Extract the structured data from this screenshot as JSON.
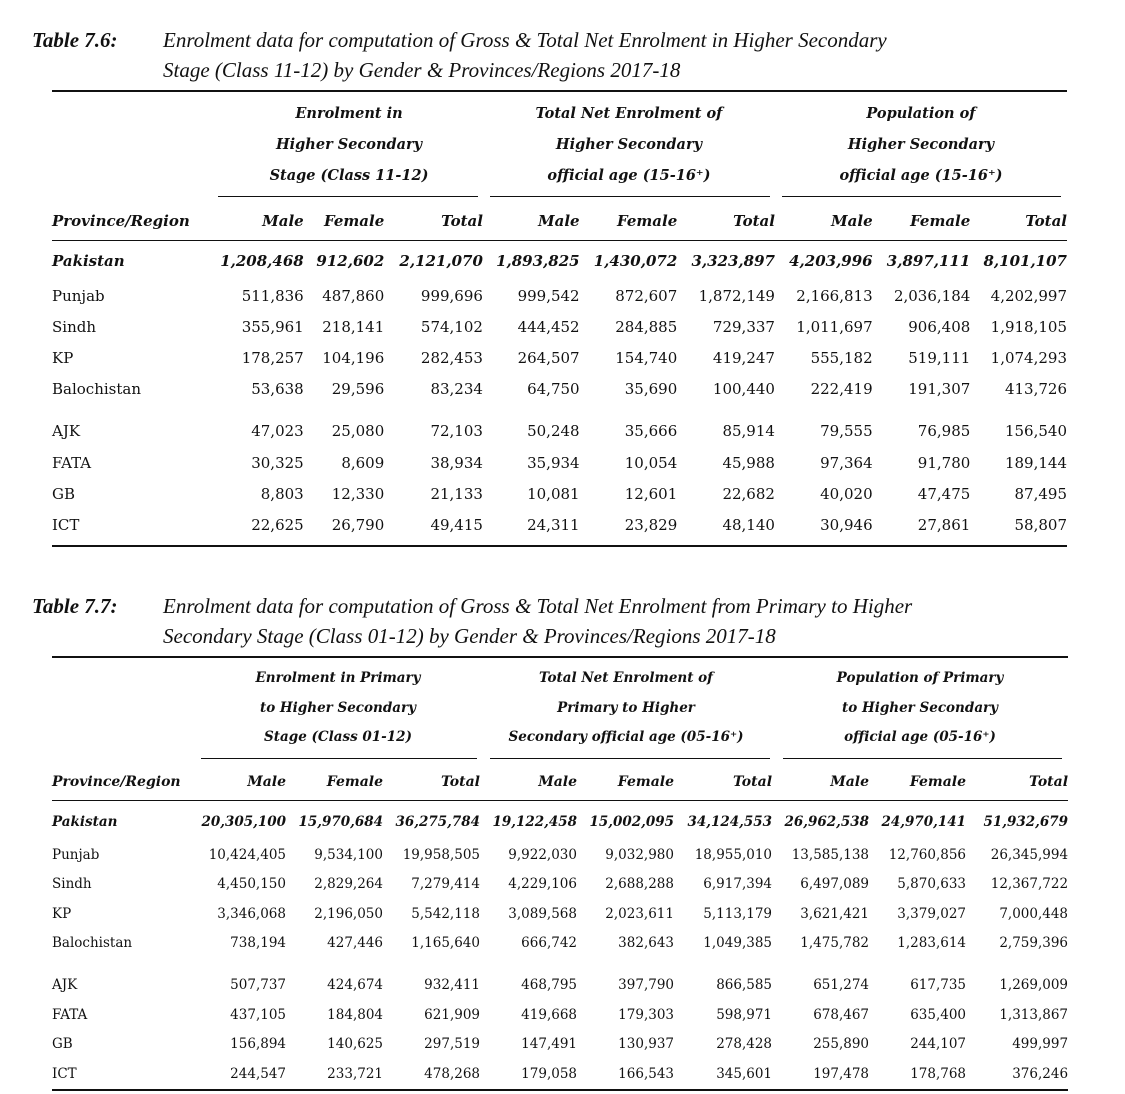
{
  "tables": [
    {
      "label": "Table 7.6:",
      "title_line1": "Enrolment data for computation of Gross & Total Net Enrolment in Higher Secondary",
      "title_line2": "Stage (Class 11-12) by Gender & Provinces/Regions 2017-18",
      "groups": [
        {
          "line1": "Enrolment in",
          "line2": "Higher Secondary",
          "line3": "Stage (Class 11-12)"
        },
        {
          "line1": "Total Net Enrolment of",
          "line2": "Higher Secondary",
          "line3": "official age (15-16⁺)"
        },
        {
          "line1": "Population of",
          "line2": "Higher Secondary",
          "line3": "official age (15-16⁺)"
        }
      ],
      "columns": [
        "Province/Region",
        "Male",
        "Female",
        "Total",
        "Male",
        "Female",
        "Total",
        "Male",
        "Female",
        "Total"
      ],
      "rows": [
        [
          "Pakistan",
          "1,208,468",
          "912,602",
          "2,121,070",
          "1,893,825",
          "1,430,072",
          "3,323,897",
          "4,203,996",
          "3,897,111",
          "8,101,107"
        ],
        [
          "Punjab",
          "511,836",
          "487,860",
          "999,696",
          "999,542",
          "872,607",
          "1,872,149",
          "2,166,813",
          "2,036,184",
          "4,202,997"
        ],
        [
          "Sindh",
          "355,961",
          "218,141",
          "574,102",
          "444,452",
          "284,885",
          "729,337",
          "1,011,697",
          "906,408",
          "1,918,105"
        ],
        [
          "KP",
          "178,257",
          "104,196",
          "282,453",
          "264,507",
          "154,740",
          "419,247",
          "555,182",
          "519,111",
          "1,074,293"
        ],
        [
          "Balochistan",
          "53,638",
          "29,596",
          "83,234",
          "64,750",
          "35,690",
          "100,440",
          "222,419",
          "191,307",
          "413,726"
        ],
        [
          "AJK",
          "47,023",
          "25,080",
          "72,103",
          "50,248",
          "35,666",
          "85,914",
          "79,555",
          "76,985",
          "156,540"
        ],
        [
          "FATA",
          "30,325",
          "8,609",
          "38,934",
          "35,934",
          "10,054",
          "45,988",
          "97,364",
          "91,780",
          "189,144"
        ],
        [
          "GB",
          "8,803",
          "12,330",
          "21,133",
          "10,081",
          "12,601",
          "22,682",
          "40,020",
          "47,475",
          "87,495"
        ],
        [
          "ICT",
          "22,625",
          "26,790",
          "49,415",
          "24,311",
          "23,829",
          "48,140",
          "30,946",
          "27,861",
          "58,807"
        ]
      ]
    },
    {
      "label": "Table 7.7:",
      "title_line1": "Enrolment data for computation of Gross & Total Net Enrolment from Primary to Higher",
      "title_line2": "Secondary Stage (Class 01-12) by Gender & Provinces/Regions 2017-18",
      "groups": [
        {
          "line1": "Enrolment in Primary",
          "line2": "to Higher Secondary",
          "line3": "Stage (Class 01-12)"
        },
        {
          "line1": "Total Net Enrolment of",
          "line2": "Primary to Higher",
          "line3": "Secondary official age (05-16⁺)"
        },
        {
          "line1": "Population of Primary",
          "line2": "to Higher Secondary",
          "line3": "official age (05-16⁺)"
        }
      ],
      "columns": [
        "Province/Region",
        "Male",
        "Female",
        "Total",
        "Male",
        "Female",
        "Total",
        "Male",
        "Female",
        "Total"
      ],
      "rows": [
        [
          "Pakistan",
          "20,305,100",
          "15,970,684",
          "36,275,784",
          "19,122,458",
          "15,002,095",
          "34,124,553",
          "26,962,538",
          "24,970,141",
          "51,932,679"
        ],
        [
          "Punjab",
          "10,424,405",
          "9,534,100",
          "19,958,505",
          "9,922,030",
          "9,032,980",
          "18,955,010",
          "13,585,138",
          "12,760,856",
          "26,345,994"
        ],
        [
          "Sindh",
          "4,450,150",
          "2,829,264",
          "7,279,414",
          "4,229,106",
          "2,688,288",
          "6,917,394",
          "6,497,089",
          "5,870,633",
          "12,367,722"
        ],
        [
          "KP",
          "3,346,068",
          "2,196,050",
          "5,542,118",
          "3,089,568",
          "2,023,611",
          "5,113,179",
          "3,621,421",
          "3,379,027",
          "7,000,448"
        ],
        [
          "Balochistan",
          "738,194",
          "427,446",
          "1,165,640",
          "666,742",
          "382,643",
          "1,049,385",
          "1,475,782",
          "1,283,614",
          "2,759,396"
        ],
        [
          "AJK",
          "507,737",
          "424,674",
          "932,411",
          "468,795",
          "397,790",
          "866,585",
          "651,274",
          "617,735",
          "1,269,009"
        ],
        [
          "FATA",
          "437,105",
          "184,804",
          "621,909",
          "419,668",
          "179,303",
          "598,971",
          "678,467",
          "635,400",
          "1,313,867"
        ],
        [
          "GB",
          "156,894",
          "140,625",
          "297,519",
          "147,491",
          "130,937",
          "278,428",
          "255,890",
          "244,107",
          "499,997"
        ],
        [
          "ICT",
          "244,547",
          "233,721",
          "478,268",
          "179,058",
          "166,543",
          "345,601",
          "197,478",
          "178,768",
          "376,246"
        ]
      ]
    }
  ]
}
